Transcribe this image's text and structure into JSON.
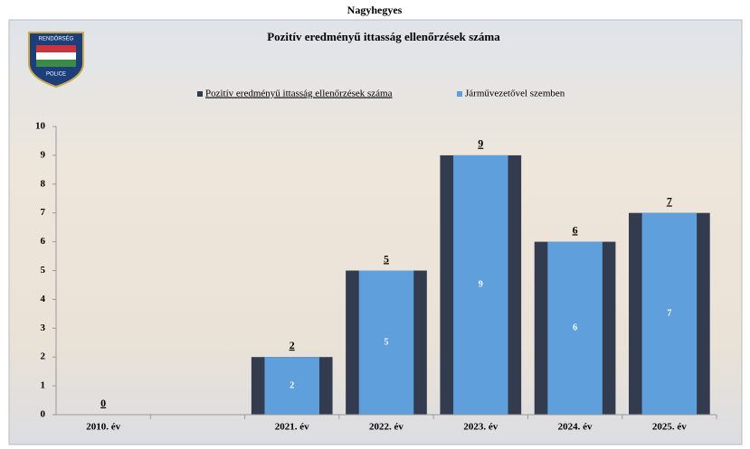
{
  "page_title": "Nagyhegyes",
  "logo": {
    "top": "RENDŐRSÉG",
    "bottom": "POLICE"
  },
  "chart_data": {
    "type": "bar",
    "title": "Pozitív eredményű ittasság ellenőrzések száma",
    "categories": [
      "2010. év",
      null,
      "2021. év",
      "2022. év",
      "2023. év",
      "2024. év",
      "2025. év"
    ],
    "series": [
      {
        "name": "Pozitív eredményű ittasság ellenőrzések száma",
        "color": "#323c4e",
        "values": [
          0,
          null,
          2,
          5,
          9,
          6,
          7
        ]
      },
      {
        "name": "Járművezetővel szemben",
        "color": "#5fa0dc",
        "values": [
          null,
          null,
          2,
          5,
          9,
          6,
          7
        ]
      }
    ],
    "ylim": [
      0,
      10
    ],
    "yticks": [
      0,
      1,
      2,
      3,
      4,
      5,
      6,
      7,
      8,
      9,
      10
    ],
    "grid": false,
    "legend": "top"
  }
}
